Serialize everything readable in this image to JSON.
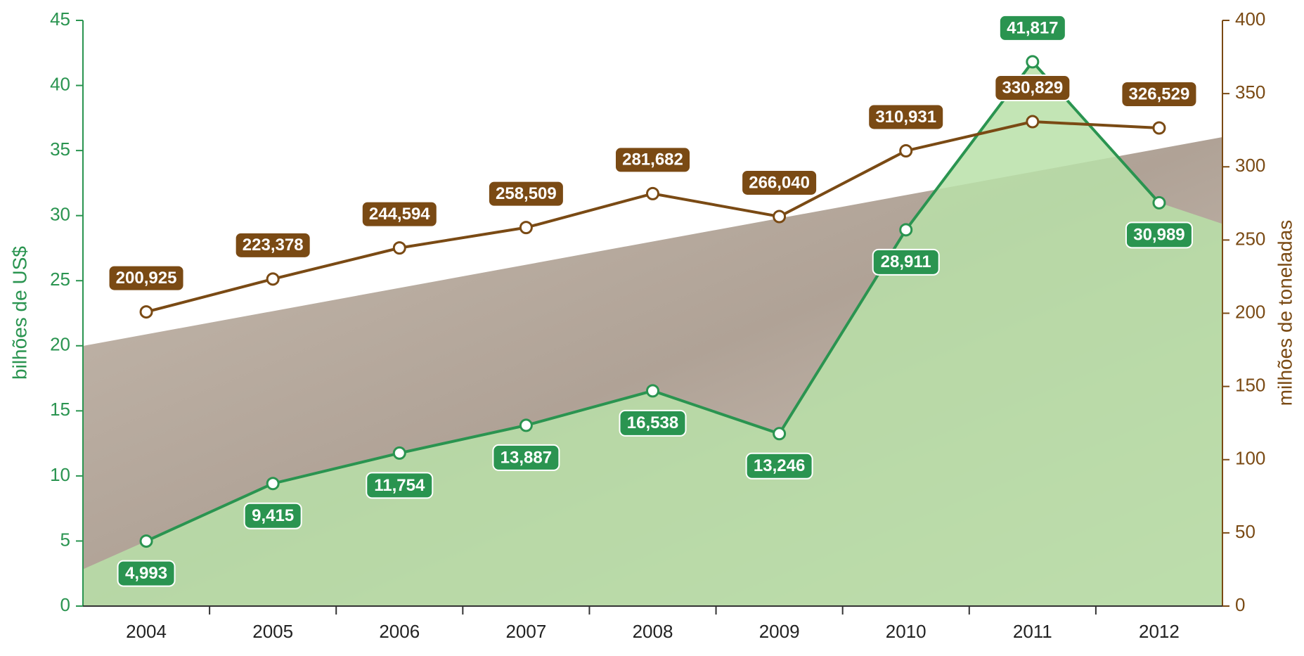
{
  "chart_data": {
    "type": "line",
    "categories": [
      "2004",
      "2005",
      "2006",
      "2007",
      "2008",
      "2009",
      "2010",
      "2011",
      "2012"
    ],
    "series": [
      {
        "color": "#2a9450",
        "values": [
          4.993,
          9.415,
          11.754,
          13.887,
          16.538,
          13.246,
          28.911,
          41.817,
          30.989
        ],
        "value_labels": [
          "4,993",
          "9,415",
          "11,754",
          "13,887",
          "16,538",
          "13,246",
          "28,911",
          "41,817",
          "30,989"
        ]
      },
      {
        "color": "#7a4a14",
        "axis": "y2",
        "values": [
          200.925,
          223.378,
          244.594,
          258.509,
          281.682,
          266.04,
          310.931,
          330.829,
          326.529
        ],
        "value_labels": [
          "200,925",
          "223,378",
          "244,594",
          "258,509",
          "281,682",
          "266,040",
          "310,931",
          "330,829",
          "326,529"
        ]
      }
    ],
    "ylabel": "bilhões de US$",
    "y2label": "milhões de toneladas",
    "ylim": [
      0,
      45
    ],
    "yticks": [
      0,
      5,
      10,
      15,
      20,
      25,
      30,
      35,
      40,
      45
    ],
    "y2lim": [
      0,
      400
    ],
    "y2ticks": [
      0,
      50,
      100,
      150,
      200,
      250,
      300,
      350,
      400
    ]
  }
}
